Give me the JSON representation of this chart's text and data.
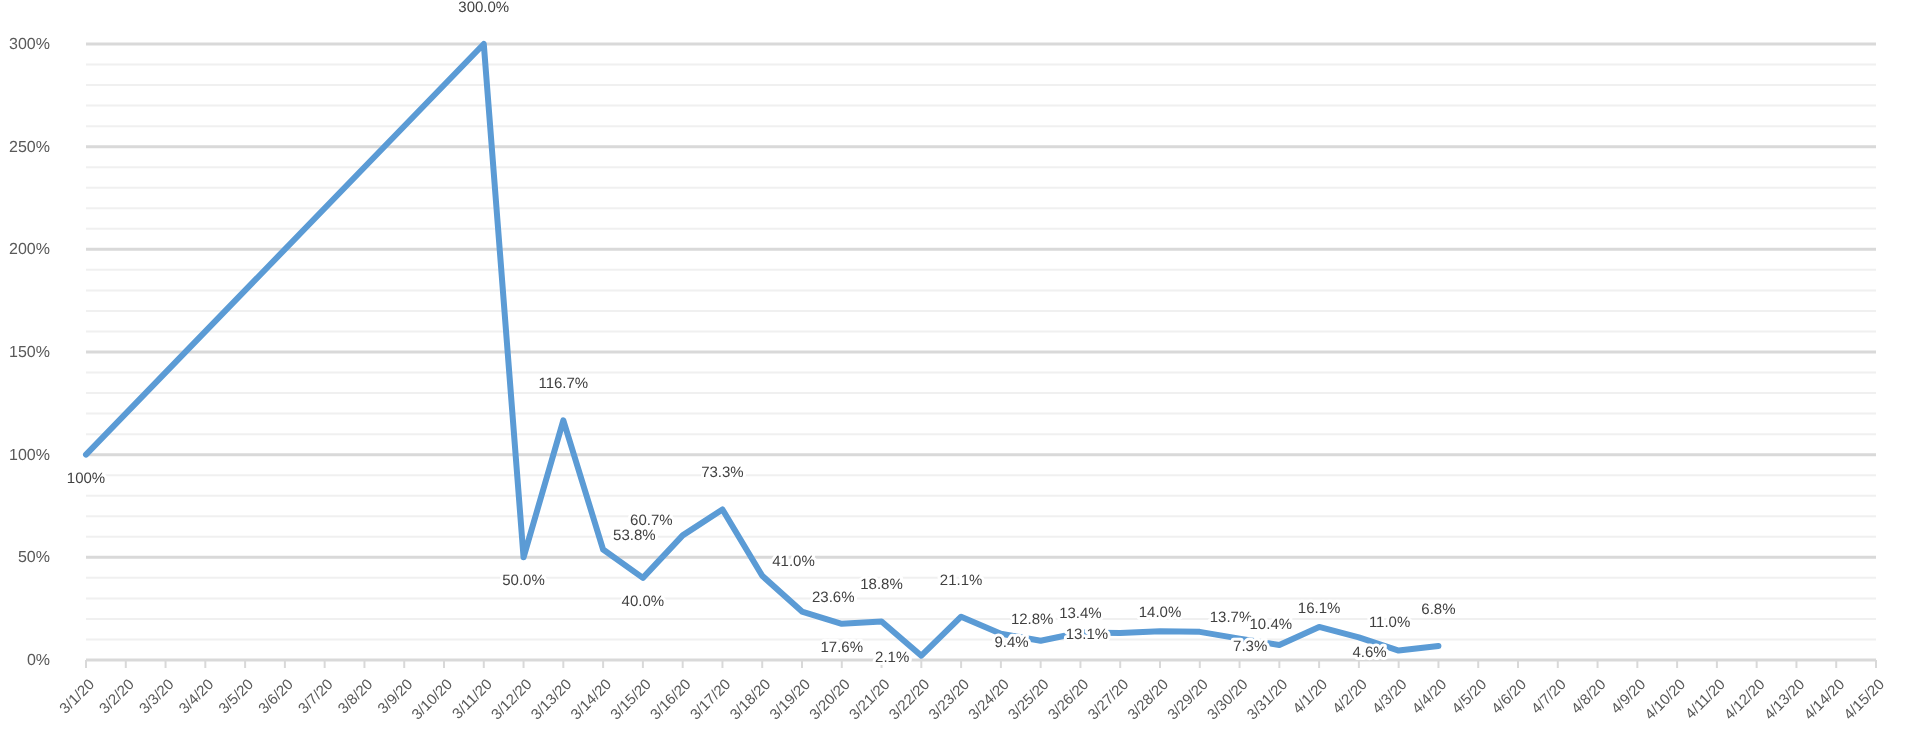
{
  "chart_data": {
    "type": "line",
    "x": [
      "--03-01",
      "--03-11",
      "--03-12",
      "--03-13",
      "--03-14",
      "--03-15",
      "--03-16",
      "--03-17",
      "--03-18",
      "--03-19",
      "--03-20",
      "--03-21",
      "--03-22",
      "--03-23",
      "--03-24",
      "--03-25",
      "--03-26",
      "--03-27",
      "--03-28",
      "--03-29",
      "--03-30",
      "--03-31",
      "--04-01",
      "--04-02",
      "--04-03",
      "--04-04"
    ],
    "series": [
      {
        "color": "#5b9bd5",
        "values": [
          100,
          300,
          50,
          116.7,
          53.8,
          40,
          60.7,
          73.3,
          41,
          23.6,
          17.6,
          18.8,
          2.1,
          21.1,
          12.8,
          9.4,
          13.4,
          13.1,
          14,
          13.7,
          10.4,
          7.3,
          16.1,
          11,
          4.6,
          6.8
        ],
        "value_labels": [
          "100%",
          "300.0%",
          "50.0%",
          "116.7%",
          "53.8%",
          "40.0%",
          "60.7%",
          "73.3%",
          "41.0%",
          "23.6%",
          "17.6%",
          "18.8%",
          "2.1%",
          "21.1%",
          "12.8%",
          "9.4%",
          "13.4%",
          "13.1%",
          "14.0%",
          "13.7%",
          "10.4%",
          "7.3%",
          "16.1%",
          "11.0%",
          "4.6%",
          "6.8%"
        ]
      }
    ],
    "xlim": [
      "--03-01",
      "--04-15"
    ],
    "xticks": [
      {
        "value": "--03-01",
        "label": "3/1/20"
      },
      {
        "value": "--03-02",
        "label": "3/2/20"
      },
      {
        "value": "--03-03",
        "label": "3/3/20"
      },
      {
        "value": "--03-04",
        "label": "3/4/20"
      },
      {
        "value": "--03-05",
        "label": "3/5/20"
      },
      {
        "value": "--03-06",
        "label": "3/6/20"
      },
      {
        "value": "--03-07",
        "label": "3/7/20"
      },
      {
        "value": "--03-08",
        "label": "3/8/20"
      },
      {
        "value": "--03-09",
        "label": "3/9/20"
      },
      {
        "value": "--03-10",
        "label": "3/10/20"
      },
      {
        "value": "--03-11",
        "label": "3/11/20"
      },
      {
        "value": "--03-12",
        "label": "3/12/20"
      },
      {
        "value": "--03-13",
        "label": "3/13/20"
      },
      {
        "value": "--03-14",
        "label": "3/14/20"
      },
      {
        "value": "--03-15",
        "label": "3/15/20"
      },
      {
        "value": "--03-16",
        "label": "3/16/20"
      },
      {
        "value": "--03-17",
        "label": "3/17/20"
      },
      {
        "value": "--03-18",
        "label": "3/18/20"
      },
      {
        "value": "--03-19",
        "label": "3/19/20"
      },
      {
        "value": "--03-20",
        "label": "3/20/20"
      },
      {
        "value": "--03-21",
        "label": "3/21/20"
      },
      {
        "value": "--03-22",
        "label": "3/22/20"
      },
      {
        "value": "--03-23",
        "label": "3/23/20"
      },
      {
        "value": "--03-24",
        "label": "3/24/20"
      },
      {
        "value": "--03-25",
        "label": "3/25/20"
      },
      {
        "value": "--03-26",
        "label": "3/26/20"
      },
      {
        "value": "--03-27",
        "label": "3/27/20"
      },
      {
        "value": "--03-28",
        "label": "3/28/20"
      },
      {
        "value": "--03-29",
        "label": "3/29/20"
      },
      {
        "value": "--03-30",
        "label": "3/30/20"
      },
      {
        "value": "--03-31",
        "label": "3/31/20"
      },
      {
        "value": "--04-01",
        "label": "4/1/20"
      },
      {
        "value": "--04-02",
        "label": "4/2/20"
      },
      {
        "value": "--04-03",
        "label": "4/3/20"
      },
      {
        "value": "--04-04",
        "label": "4/4/20"
      },
      {
        "value": "--04-05",
        "label": "4/5/20"
      },
      {
        "value": "--04-06",
        "label": "4/6/20"
      },
      {
        "value": "--04-07",
        "label": "4/7/20"
      },
      {
        "value": "--04-08",
        "label": "4/8/20"
      },
      {
        "value": "--04-09",
        "label": "4/9/20"
      },
      {
        "value": "--04-10",
        "label": "4/10/20"
      },
      {
        "value": "--04-11",
        "label": "4/11/20"
      },
      {
        "value": "--04-12",
        "label": "4/12/20"
      },
      {
        "value": "--04-13",
        "label": "4/13/20"
      },
      {
        "value": "--04-14",
        "label": "4/14/20"
      },
      {
        "value": "--04-15",
        "label": "4/15/20"
      }
    ],
    "ylim": [
      0,
      300
    ],
    "yticks": [
      {
        "value": 0,
        "label": "0%"
      },
      {
        "value": 10,
        "label": null
      },
      {
        "value": 20,
        "label": null
      },
      {
        "value": 30,
        "label": null
      },
      {
        "value": 40,
        "label": null
      },
      {
        "value": 50,
        "label": "50%"
      },
      {
        "value": 60,
        "label": null
      },
      {
        "value": 70,
        "label": null
      },
      {
        "value": 80,
        "label": null
      },
      {
        "value": 90,
        "label": null
      },
      {
        "value": 100,
        "label": "100%"
      },
      {
        "value": 110,
        "label": null
      },
      {
        "value": 120,
        "label": null
      },
      {
        "value": 130,
        "label": null
      },
      {
        "value": 140,
        "label": null
      },
      {
        "value": 150,
        "label": "150%"
      },
      {
        "value": 160,
        "label": null
      },
      {
        "value": 170,
        "label": null
      },
      {
        "value": 180,
        "label": null
      },
      {
        "value": 190,
        "label": null
      },
      {
        "value": 200,
        "label": "200%"
      },
      {
        "value": 210,
        "label": null
      },
      {
        "value": 220,
        "label": null
      },
      {
        "value": 230,
        "label": null
      },
      {
        "value": 240,
        "label": null
      },
      {
        "value": 250,
        "label": "250%"
      },
      {
        "value": 260,
        "label": null
      },
      {
        "value": 270,
        "label": null
      },
      {
        "value": 280,
        "label": null
      },
      {
        "value": 290,
        "label": null
      },
      {
        "value": 300,
        "label": "300%"
      }
    ],
    "grid": "y",
    "marker": "none",
    "line_style": "solid"
  }
}
